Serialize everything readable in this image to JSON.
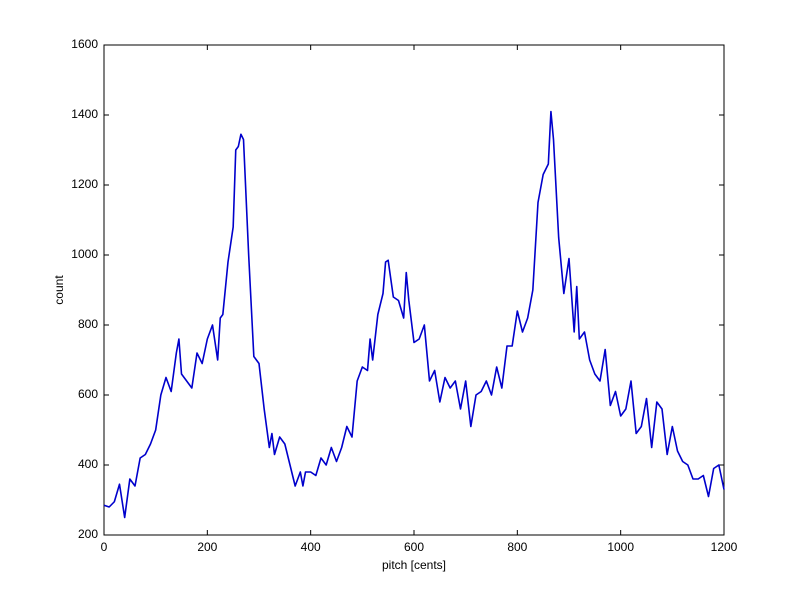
{
  "chart_data": {
    "type": "line",
    "xlabel": "pitch [cents]",
    "ylabel": "count",
    "x": [
      0,
      10,
      20,
      30,
      40,
      50,
      60,
      70,
      80,
      90,
      100,
      110,
      120,
      130,
      140,
      145,
      150,
      160,
      170,
      180,
      190,
      200,
      210,
      220,
      225,
      230,
      240,
      250,
      255,
      260,
      265,
      270,
      280,
      290,
      300,
      310,
      320,
      325,
      330,
      340,
      350,
      360,
      370,
      380,
      385,
      390,
      400,
      410,
      420,
      430,
      440,
      450,
      460,
      470,
      480,
      490,
      500,
      510,
      515,
      520,
      530,
      540,
      545,
      550,
      560,
      570,
      580,
      585,
      590,
      600,
      610,
      620,
      630,
      640,
      650,
      660,
      670,
      680,
      690,
      700,
      710,
      720,
      730,
      740,
      750,
      760,
      770,
      780,
      790,
      800,
      810,
      820,
      830,
      840,
      850,
      860,
      865,
      870,
      880,
      890,
      900,
      910,
      915,
      920,
      930,
      940,
      950,
      960,
      970,
      980,
      990,
      1000,
      1010,
      1020,
      1030,
      1040,
      1050,
      1060,
      1070,
      1080,
      1090,
      1100,
      1110,
      1120,
      1130,
      1140,
      1150,
      1160,
      1170,
      1180,
      1190,
      1200
    ],
    "series": [
      {
        "color": "#0000cc",
        "values": [
          285,
          280,
          295,
          345,
          250,
          360,
          340,
          420,
          430,
          460,
          500,
          600,
          650,
          610,
          720,
          760,
          660,
          640,
          620,
          720,
          690,
          760,
          800,
          700,
          820,
          830,
          980,
          1080,
          1300,
          1310,
          1345,
          1330,
          1000,
          710,
          690,
          560,
          450,
          490,
          430,
          480,
          460,
          400,
          340,
          380,
          340,
          380,
          380,
          370,
          420,
          400,
          450,
          410,
          450,
          510,
          480,
          640,
          680,
          670,
          760,
          700,
          830,
          890,
          980,
          985,
          880,
          870,
          820,
          950,
          870,
          750,
          760,
          800,
          640,
          670,
          580,
          650,
          620,
          640,
          560,
          640,
          510,
          600,
          610,
          640,
          600,
          680,
          620,
          740,
          740,
          840,
          780,
          820,
          900,
          1150,
          1230,
          1260,
          1410,
          1330,
          1050,
          890,
          990,
          780,
          910,
          760,
          780,
          700,
          660,
          640,
          730,
          570,
          610,
          540,
          560,
          640,
          490,
          510,
          590,
          450,
          580,
          560,
          430,
          510,
          440,
          410,
          400,
          360,
          360,
          370,
          310,
          390,
          400,
          330
        ]
      }
    ],
    "xlim": [
      0,
      1200
    ],
    "xticks": [
      0,
      200,
      400,
      600,
      800,
      1000,
      1200
    ],
    "ylim": [
      200,
      1600
    ],
    "yticks": [
      200,
      400,
      600,
      800,
      1000,
      1200,
      1400,
      1600
    ]
  }
}
